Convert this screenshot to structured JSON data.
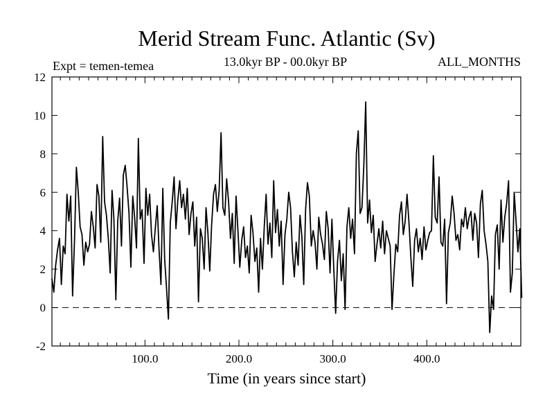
{
  "chart_data": {
    "type": "line",
    "title": "Merid Stream Func. Atlantic (Sv)",
    "subtitle": "13.0kyr BP - 00.0kyr BP",
    "left_label": "Expt = temen-temea",
    "right_label": "ALL_MONTHS",
    "xlabel": "Time (in years since start)",
    "ylabel": "",
    "xlim": [
      1,
      500
    ],
    "ylim": [
      -2,
      12
    ],
    "xticks": [
      100,
      200,
      300,
      400
    ],
    "xtick_labels": [
      "100.0",
      "200.0",
      "300.0",
      "400.0"
    ],
    "yticks": [
      -2,
      0,
      2,
      4,
      6,
      8,
      10,
      12
    ],
    "ytick_labels": [
      "-2",
      "0",
      "2",
      "4",
      "6",
      "8",
      "10",
      "12"
    ],
    "reference_line": {
      "y": 0,
      "style": "dashed"
    },
    "grid": false,
    "series": [
      {
        "name": "Merid Stream Func. Atlantic",
        "color": "#000000",
        "x_start": 1,
        "x_step": 2,
        "values": [
          1.5,
          0.8,
          2.2,
          3.0,
          3.6,
          1.2,
          3.2,
          2.8,
          5.9,
          4.5,
          5.8,
          0.6,
          3.5,
          7.3,
          6.0,
          4.2,
          3.8,
          2.2,
          3.4,
          2.9,
          3.3,
          5.0,
          4.2,
          3.1,
          6.4,
          5.8,
          3.4,
          8.9,
          5.5,
          4.8,
          3.6,
          1.8,
          6.1,
          4.6,
          0.4,
          4.5,
          5.7,
          3.2,
          6.9,
          7.4,
          6.3,
          4.9,
          2.1,
          5.8,
          4.7,
          3.1,
          8.8,
          4.6,
          5.1,
          2.3,
          6.2,
          4.8,
          5.9,
          3.8,
          2.9,
          4.1,
          5.3,
          3.0,
          1.2,
          6.2,
          2.5,
          1.0,
          -0.6,
          4.4,
          5.5,
          6.8,
          4.1,
          5.6,
          6.6,
          5.2,
          5.9,
          4.6,
          6.2,
          3.8,
          4.9,
          5.5,
          3.2,
          4.7,
          0.3,
          4.1,
          3.6,
          2.0,
          5.2,
          3.9,
          1.9,
          4.3,
          5.9,
          6.4,
          5.0,
          6.1,
          9.1,
          5.2,
          4.8,
          6.7,
          5.5,
          3.6,
          4.9,
          2.3,
          5.8,
          4.0,
          2.1,
          3.5,
          4.2,
          2.6,
          3.2,
          1.8,
          4.8,
          3.9,
          2.4,
          3.1,
          0.8,
          3.6,
          2.0,
          4.2,
          5.9,
          3.3,
          4.4,
          2.6,
          6.6,
          3.9,
          5.1,
          3.2,
          4.5,
          1.2,
          3.8,
          4.6,
          6.0,
          5.2,
          2.9,
          1.6,
          3.4,
          2.2,
          4.8,
          3.7,
          1.2,
          5.1,
          6.5,
          5.8,
          3.2,
          4.0,
          3.4,
          2.0,
          4.7,
          3.8,
          3.3,
          2.5,
          5.0,
          4.1,
          1.8,
          4.6,
          2.0,
          -0.3,
          2.4,
          3.5,
          1.4,
          2.8,
          -0.1,
          4.2,
          5.2,
          3.6,
          4.6,
          2.8,
          8.0,
          9.2,
          4.9,
          5.2,
          7.4,
          10.7,
          4.4,
          5.6,
          3.9,
          4.8,
          2.4,
          3.3,
          4.1,
          3.1,
          4.5,
          2.8,
          4.0,
          3.6,
          3.2,
          -0.1,
          1.7,
          3.3,
          2.9,
          4.8,
          5.5,
          3.8,
          4.5,
          5.9,
          4.4,
          2.6,
          1.1,
          3.5,
          4.1,
          2.9,
          3.6,
          2.5,
          4.2,
          3.0,
          3.5,
          3.9,
          4.0,
          7.9,
          4.7,
          4.4,
          6.8,
          3.4,
          3.2,
          4.6,
          0.2,
          3.9,
          4.4,
          5.8,
          4.9,
          3.5,
          3.8,
          3.0,
          4.6,
          4.2,
          5.2,
          4.1,
          4.7,
          5.0,
          3.5,
          4.9,
          4.4,
          2.6,
          5.4,
          6.1,
          4.0,
          3.3,
          2.4,
          -1.3,
          0.6,
          -0.1,
          3.8,
          4.3,
          2.0,
          5.6,
          3.4,
          4.7,
          5.4,
          6.6,
          0.8,
          1.8,
          6.0,
          4.5,
          2.9,
          4.1,
          0.5
        ]
      }
    ]
  }
}
